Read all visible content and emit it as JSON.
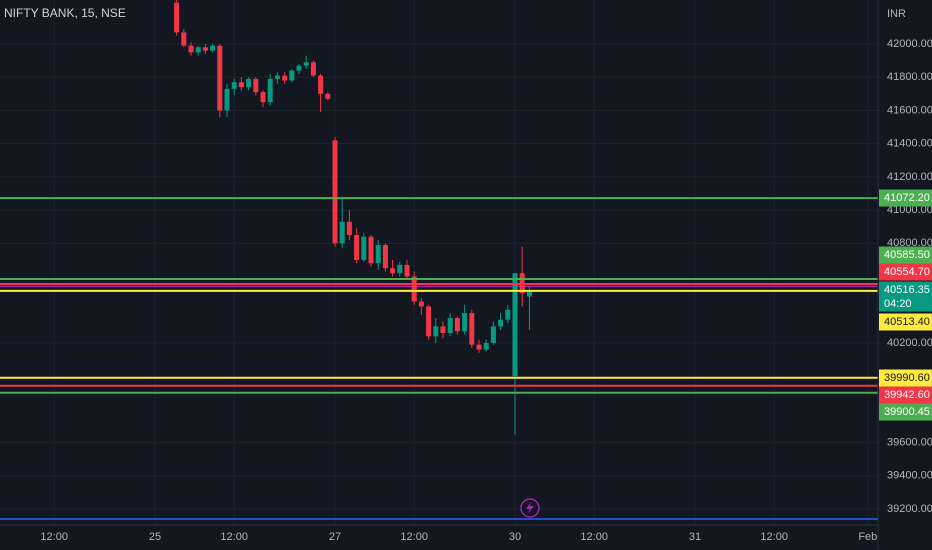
{
  "chart_data": {
    "type": "candlestick",
    "title": "NIFTY BANK, 15, NSE",
    "currency": "INR",
    "up_color": "#089981",
    "down_color": "#f23645",
    "grid": true,
    "ylim": [
      39104,
      42265
    ],
    "yticks": [
      {
        "value": 42000,
        "label": "42000.00"
      },
      {
        "value": 41800,
        "label": "41800.00"
      },
      {
        "value": 41600,
        "label": "41600.00"
      },
      {
        "value": 41400,
        "label": "41400.00"
      },
      {
        "value": 41200,
        "label": "41200.00"
      },
      {
        "value": 41000,
        "label": "41000.00"
      },
      {
        "value": 40800,
        "label": "40800.00"
      },
      {
        "value": 40200,
        "label": "40200.00"
      },
      {
        "value": 39600,
        "label": "39600.00"
      },
      {
        "value": 39400,
        "label": "39400.00"
      },
      {
        "value": 39200,
        "label": "39200.00"
      }
    ],
    "categories": [
      null,
      null,
      null,
      null,
      null,
      null,
      "12:00",
      null,
      null,
      null,
      null,
      null,
      null,
      null,
      null,
      null,
      null,
      null,
      null,
      null,
      "25",
      null,
      null,
      null,
      null,
      null,
      null,
      null,
      null,
      null,
      null,
      "12:00",
      null,
      null,
      null,
      null,
      null,
      null,
      null,
      null,
      null,
      null,
      null,
      null,
      null,
      "27",
      null,
      null,
      null,
      null,
      null,
      null,
      null,
      null,
      null,
      null,
      "12:00",
      null,
      null,
      null,
      null,
      null,
      null,
      null,
      null,
      null,
      null,
      null,
      null,
      null,
      "30",
      null,
      null,
      null,
      null,
      null,
      null,
      null,
      null,
      null,
      null,
      "12:00",
      null,
      null,
      null,
      null,
      null,
      null,
      null,
      null,
      null,
      null,
      null,
      null,
      null,
      "31",
      null,
      null,
      null,
      null,
      null,
      null,
      null,
      null,
      null,
      null,
      "12:00",
      null,
      null,
      null,
      null,
      null,
      null,
      null,
      null,
      null,
      null,
      null,
      null,
      "Feb"
    ],
    "open": [
      null,
      null,
      null,
      null,
      null,
      null,
      null,
      null,
      null,
      null,
      null,
      null,
      null,
      null,
      null,
      null,
      null,
      null,
      null,
      null,
      null,
      null,
      null,
      42250,
      42070,
      41990,
      41950,
      41980,
      41960,
      41990,
      41600,
      41730,
      41770,
      41740,
      41790,
      41710,
      41650,
      41790,
      41810,
      41780,
      41840,
      41870,
      41890,
      41810,
      41700,
      41420,
      40800,
      40930,
      40850,
      40700,
      40840,
      40680,
      40790,
      40650,
      40620,
      40670,
      40600,
      40450,
      40420,
      40240,
      40300,
      40260,
      40350,
      40270,
      40380,
      40190,
      40160,
      40200,
      40300,
      40340,
      40000,
      40620,
      40480,
      null,
      null,
      null,
      null,
      null,
      null,
      null,
      null,
      null,
      null,
      null,
      null,
      null,
      null,
      null,
      null,
      null,
      null,
      null,
      null,
      null,
      null,
      null,
      null,
      null,
      null,
      null,
      null,
      null,
      null,
      null,
      null,
      null,
      null,
      null,
      null,
      null,
      null,
      null,
      null,
      null,
      null,
      null,
      null,
      null,
      null,
      null
    ],
    "high": [
      null,
      null,
      null,
      null,
      null,
      null,
      null,
      null,
      null,
      null,
      null,
      null,
      null,
      null,
      null,
      null,
      null,
      null,
      null,
      null,
      null,
      null,
      null,
      42280,
      42090,
      42010,
      41990,
      42000,
      42000,
      42000,
      41760,
      41790,
      41800,
      41800,
      41800,
      41720,
      41820,
      41830,
      41830,
      41850,
      41880,
      41930,
      41900,
      41820,
      41710,
      41440,
      41080,
      41000,
      40890,
      40860,
      40850,
      40820,
      40800,
      40700,
      40690,
      40700,
      40630,
      40470,
      40430,
      40350,
      40330,
      40380,
      40360,
      40430,
      40400,
      40220,
      40220,
      40330,
      40380,
      40430,
      40620,
      40780,
      40540,
      null,
      null,
      null,
      null,
      null,
      null,
      null,
      null,
      null,
      null,
      null,
      null,
      null,
      null,
      null,
      null,
      null,
      null,
      null,
      null,
      null,
      null,
      null,
      null,
      null,
      null,
      null,
      null,
      null,
      null,
      null,
      null,
      null,
      null,
      null,
      null,
      null,
      null,
      null,
      null,
      null,
      null,
      null,
      null,
      null,
      null,
      null
    ],
    "low": [
      null,
      null,
      null,
      null,
      null,
      null,
      null,
      null,
      null,
      null,
      null,
      null,
      null,
      null,
      null,
      null,
      null,
      null,
      null,
      null,
      null,
      null,
      null,
      42050,
      41980,
      41930,
      41930,
      41940,
      41950,
      41560,
      41560,
      41690,
      41720,
      41720,
      41690,
      41620,
      41630,
      41760,
      41760,
      41770,
      41820,
      41850,
      41800,
      41590,
      41660,
      40780,
      40770,
      40820,
      40680,
      40690,
      40660,
      40640,
      40630,
      40600,
      40600,
      40590,
      40430,
      40370,
      40220,
      40200,
      40230,
      40240,
      40250,
      40250,
      40170,
      40140,
      40150,
      40190,
      40280,
      40320,
      39650,
      40420,
      40280,
      null,
      null,
      null,
      null,
      null,
      null,
      null,
      null,
      null,
      null,
      null,
      null,
      null,
      null,
      null,
      null,
      null,
      null,
      null,
      null,
      null,
      null,
      null,
      null,
      null,
      null,
      null,
      null,
      null,
      null,
      null,
      null,
      null,
      null,
      null,
      null,
      null,
      null,
      null,
      null,
      null,
      null,
      null,
      null,
      null,
      null,
      null
    ],
    "close": [
      null,
      null,
      null,
      null,
      null,
      null,
      null,
      null,
      null,
      null,
      null,
      null,
      null,
      null,
      null,
      null,
      null,
      null,
      null,
      null,
      null,
      null,
      null,
      42070,
      41990,
      41950,
      41980,
      41960,
      41990,
      41600,
      41730,
      41770,
      41740,
      41790,
      41710,
      41650,
      41790,
      41810,
      41780,
      41840,
      41870,
      41890,
      41810,
      41700,
      41670,
      40800,
      40930,
      40850,
      40700,
      40840,
      40680,
      40790,
      40650,
      40620,
      40670,
      40600,
      40450,
      40420,
      40240,
      40300,
      40260,
      40350,
      40270,
      40380,
      40190,
      40160,
      40200,
      40300,
      40340,
      40400,
      40620,
      40500,
      40516.35,
      null,
      null,
      null,
      null,
      null,
      null,
      null,
      null,
      null,
      null,
      null,
      null,
      null,
      null,
      null,
      null,
      null,
      null,
      null,
      null,
      null,
      null,
      null,
      null,
      null,
      null,
      null,
      null,
      null,
      null,
      null,
      null,
      null,
      null,
      null,
      null,
      null,
      null,
      null,
      null,
      null,
      null,
      null,
      null,
      null,
      null,
      null
    ],
    "price_lines": [
      {
        "value": 41072.2,
        "label": "41072.20",
        "color": "#4caf50",
        "text_color": "#ffffff"
      },
      {
        "value": 40585.5,
        "label": "40585.50",
        "color": "#4caf50",
        "text_color": "#ffffff"
      },
      {
        "value": 40554.7,
        "label": "40554.70",
        "color": "#f23645",
        "text_color": "#ffffff"
      },
      {
        "value": 40516.35,
        "label": "40516.35",
        "countdown": "04:20",
        "color": "#089981",
        "text_color": "#ffffff",
        "style": "dotted"
      },
      {
        "value": 40513.4,
        "label": "40513.40",
        "color": "#ffeb3b",
        "text_color": "#131722"
      },
      {
        "value": 39990.6,
        "label": "39990.60",
        "color": "#ffeb3b",
        "text_color": "#131722"
      },
      {
        "value": 39942.6,
        "label": "39942.60",
        "color": "#f23645",
        "text_color": "#ffffff"
      },
      {
        "value": 39900.45,
        "label": "39900.45",
        "color": "#4caf50",
        "text_color": "#ffffff"
      }
    ],
    "lines": [
      {
        "value": 40540,
        "color": "#9c27b0"
      },
      {
        "value": 39140,
        "color": "#2962ff"
      }
    ]
  }
}
